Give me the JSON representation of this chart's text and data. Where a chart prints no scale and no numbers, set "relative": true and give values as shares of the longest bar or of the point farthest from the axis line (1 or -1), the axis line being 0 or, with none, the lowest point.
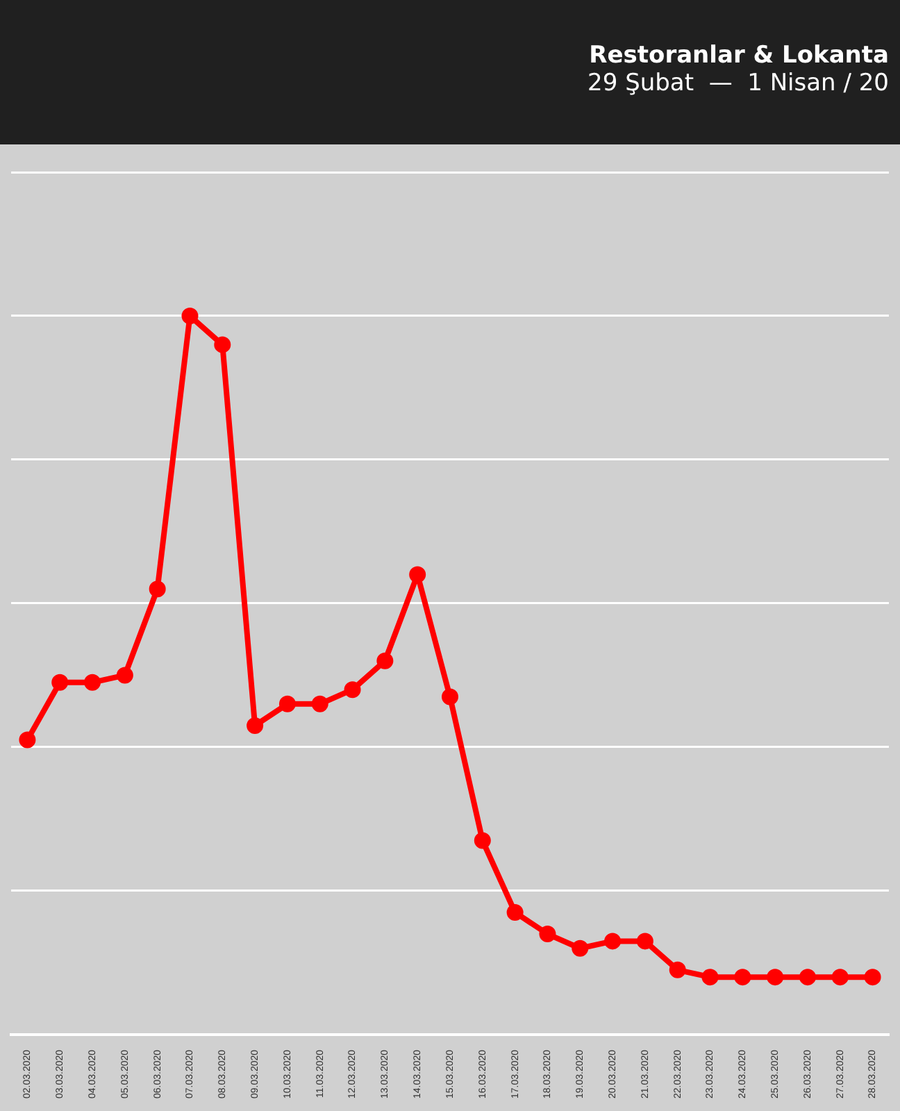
{
  "chart_data": {
    "type": "line",
    "title": "Restoranlar & Lokanta",
    "subtitle": "29 Şubat  —  1 Nisan / 20",
    "categories": [
      "02.03.2020",
      "03.03.2020",
      "04.03.2020",
      "05.03.2020",
      "06.03.2020",
      "07.03.2020",
      "08.03.2020",
      "09.03.2020",
      "10.03.2020",
      "11.03.2020",
      "12.03.2020",
      "13.03.2020",
      "14.03.2020",
      "15.03.2020",
      "16.03.2020",
      "17.03.2020",
      "18.03.2020",
      "19.03.2020",
      "20.03.2020",
      "21.03.2020",
      "22.03.2020",
      "23.03.2020",
      "24.03.2020",
      "25.03.2020",
      "26.03.2020",
      "27.03.2020",
      "28.03.2020"
    ],
    "series": [
      {
        "color": "#ff0000",
        "values": [
          0.41,
          0.49,
          0.49,
          0.5,
          0.62,
          1,
          0.96,
          0.43,
          0.46,
          0.46,
          0.48,
          0.52,
          0.64,
          0.47,
          0.27,
          0.17,
          0.14,
          0.12,
          0.13,
          0.13,
          0.09,
          0.08,
          0.08,
          0.08,
          0.08,
          0.08,
          0.08
        ]
      }
    ],
    "relative": true,
    "grid": "y",
    "legend": false,
    "marker": "circle",
    "line_style": "solid"
  }
}
